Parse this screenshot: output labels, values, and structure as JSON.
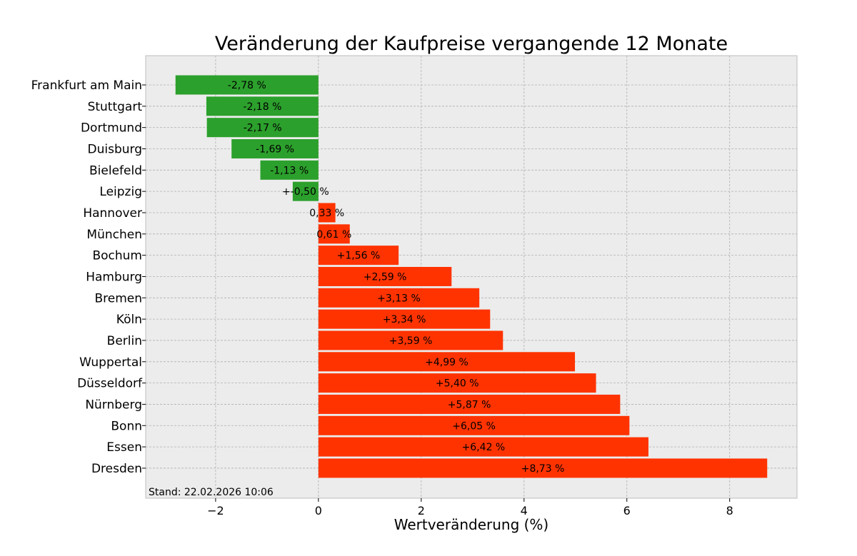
{
  "chart_data": {
    "type": "bar",
    "orientation": "horizontal",
    "title": "Veränderung der Kaufpreise vergangende 12 Monate",
    "xlabel": "Wertveränderung (%)",
    "ylabel": "",
    "xlim": [
      -3.36,
      9.31
    ],
    "xticks": [
      -2,
      0,
      2,
      4,
      6,
      8
    ],
    "xtick_labels": [
      "−2",
      "0",
      "2",
      "4",
      "6",
      "8"
    ],
    "grid": true,
    "categories": [
      "Frankfurt am Main",
      "Stuttgart",
      "Dortmund",
      "Duisburg",
      "Bielefeld",
      "Leipzig",
      "Hannover",
      "München",
      "Bochum",
      "Hamburg",
      "Bremen",
      "Köln",
      "Berlin",
      "Wuppertal",
      "Düsseldorf",
      "Nürnberg",
      "Bonn",
      "Essen",
      "Dresden"
    ],
    "values": [
      -2.78,
      -2.18,
      -2.17,
      -1.69,
      -1.13,
      -0.5,
      0.33,
      0.61,
      1.56,
      2.59,
      3.13,
      3.34,
      3.59,
      4.99,
      5.4,
      5.87,
      6.05,
      6.42,
      8.73
    ],
    "data_labels": [
      "-2,78 %",
      "-2,18 %",
      "-2,17 %",
      "-1,69 %",
      "-1,13 %",
      "+-0,50 %",
      "0,33 %",
      "0,61 %",
      "+1,56 %",
      "+2,59 %",
      "+3,13 %",
      "+3,34 %",
      "+3,59 %",
      "+4,99 %",
      "+5,40 %",
      "+5,87 %",
      "+6,05 %",
      "+6,42 %",
      "+8,73 %"
    ],
    "colors": {
      "negative": "#2ca02c",
      "positive": "#ff3300",
      "background": "#ececec"
    },
    "annotation": "Stand: 22.02.2026 10:06"
  }
}
